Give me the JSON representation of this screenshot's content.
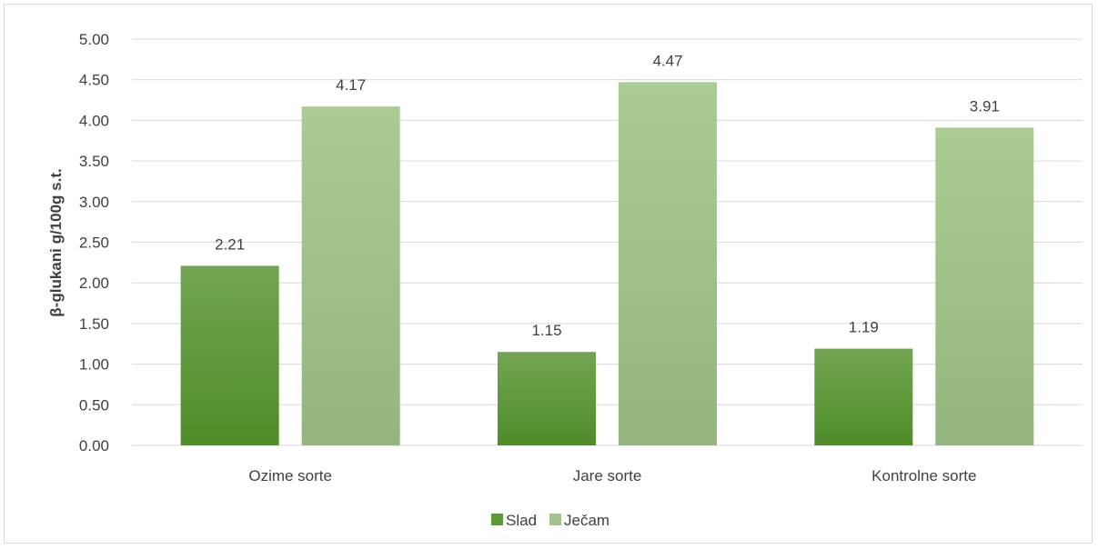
{
  "chart_data": {
    "type": "bar",
    "categories": [
      "Ozime sorte",
      "Jare sorte",
      "Kontrolne sorte"
    ],
    "series": [
      {
        "name": "Slad",
        "values": [
          2.21,
          1.15,
          1.19
        ],
        "labels": [
          "2.21",
          "1.15",
          "1.19"
        ],
        "color": "#5c9a34"
      },
      {
        "name": "Ječam",
        "values": [
          4.17,
          4.47,
          3.91
        ],
        "labels": [
          "4.17",
          "4.47",
          "3.91"
        ],
        "color": "#a2c48a"
      }
    ],
    "ylabel": "β-glukani g/100g s.t.",
    "ylim": [
      0,
      5
    ],
    "yticks": [
      "0.00",
      "0.50",
      "1.00",
      "1.50",
      "2.00",
      "2.50",
      "3.00",
      "3.50",
      "4.00",
      "4.50",
      "5.00"
    ],
    "grid": true,
    "legend_position": "bottom"
  }
}
